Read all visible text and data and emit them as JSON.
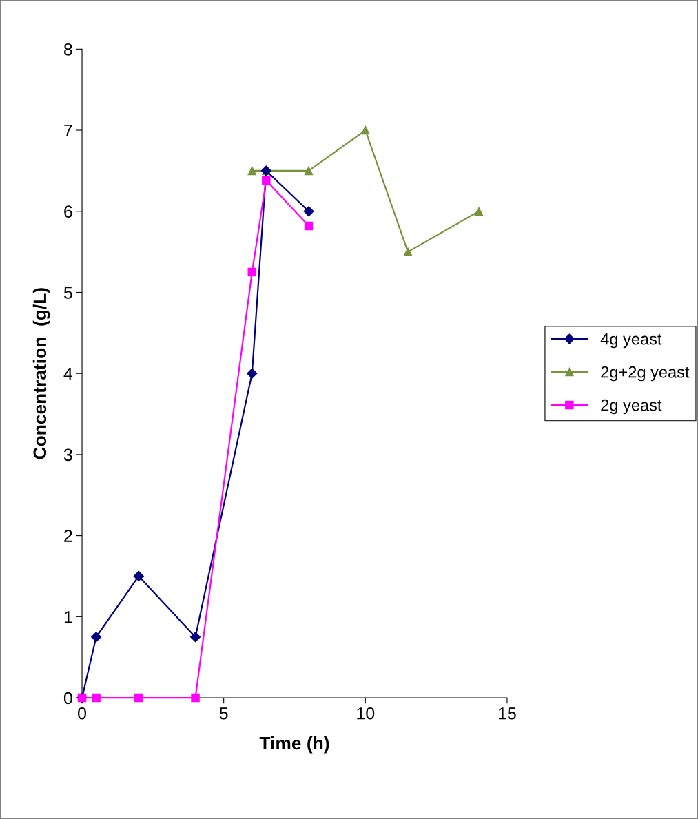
{
  "chart_data": {
    "type": "line",
    "xlabel": "Time (h)",
    "ylabel": "Concentration  (g/L)",
    "xlim": [
      0,
      15
    ],
    "xticks": [
      0,
      5,
      10,
      15
    ],
    "ylim": [
      0,
      8
    ],
    "yticks": [
      0,
      1,
      2,
      3,
      4,
      5,
      6,
      7,
      8
    ],
    "grid": false,
    "legend": "right",
    "series": [
      {
        "name": "4g yeast",
        "color": "#000080",
        "marker": "diamond",
        "x": [
          0,
          0.5,
          2,
          4,
          6,
          6.5,
          8
        ],
        "values": [
          0,
          0.75,
          1.5,
          0.75,
          4,
          6.5,
          6
        ]
      },
      {
        "name": "2g+2g yeast",
        "color": "#77933c",
        "marker": "triangle",
        "x": [
          6,
          6.5,
          8,
          10,
          11.5,
          14
        ],
        "values": [
          6.5,
          6.5,
          6.5,
          7,
          5.5,
          6
        ]
      },
      {
        "name": "2g yeast",
        "color": "#ff00ff",
        "marker": "square",
        "x": [
          0,
          0.5,
          2,
          4,
          6,
          6.5,
          8
        ],
        "values": [
          0,
          0,
          0,
          0,
          5.25,
          6.38,
          5.82
        ]
      }
    ]
  }
}
